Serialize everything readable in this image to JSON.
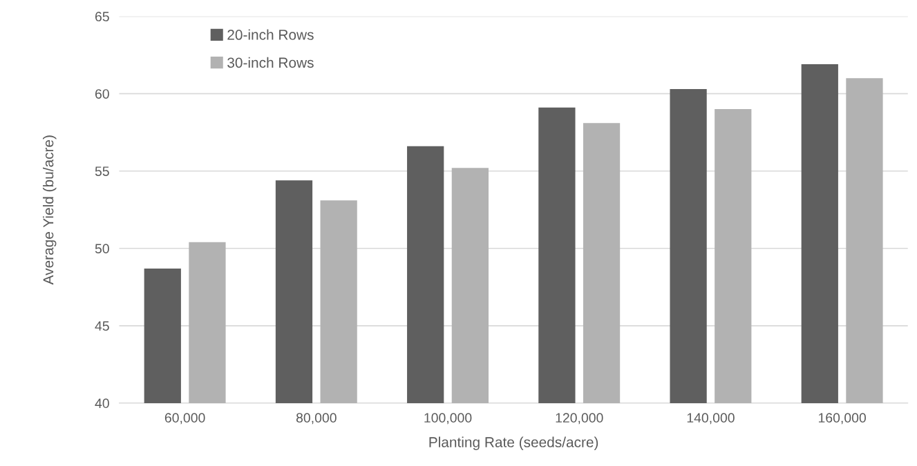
{
  "chart_data": {
    "type": "bar",
    "xlabel": "Planting Rate (seeds/acre)",
    "ylabel": "Average Yield (bu/acre)",
    "categories": [
      "60,000",
      "80,000",
      "100,000",
      "120,000",
      "140,000",
      "160,000"
    ],
    "series": [
      {
        "name": "20-inch Rows",
        "color": "#5f5f5f",
        "values": [
          48.7,
          54.4,
          56.6,
          59.1,
          60.3,
          61.9
        ]
      },
      {
        "name": "30-inch Rows",
        "color": "#b2b2b2",
        "values": [
          50.4,
          53.1,
          55.2,
          58.1,
          59.0,
          61.0
        ]
      }
    ],
    "ylim": [
      40,
      65
    ],
    "yticks": [
      40,
      45,
      50,
      55,
      60,
      65
    ],
    "grid": "y",
    "legend": "top left"
  }
}
